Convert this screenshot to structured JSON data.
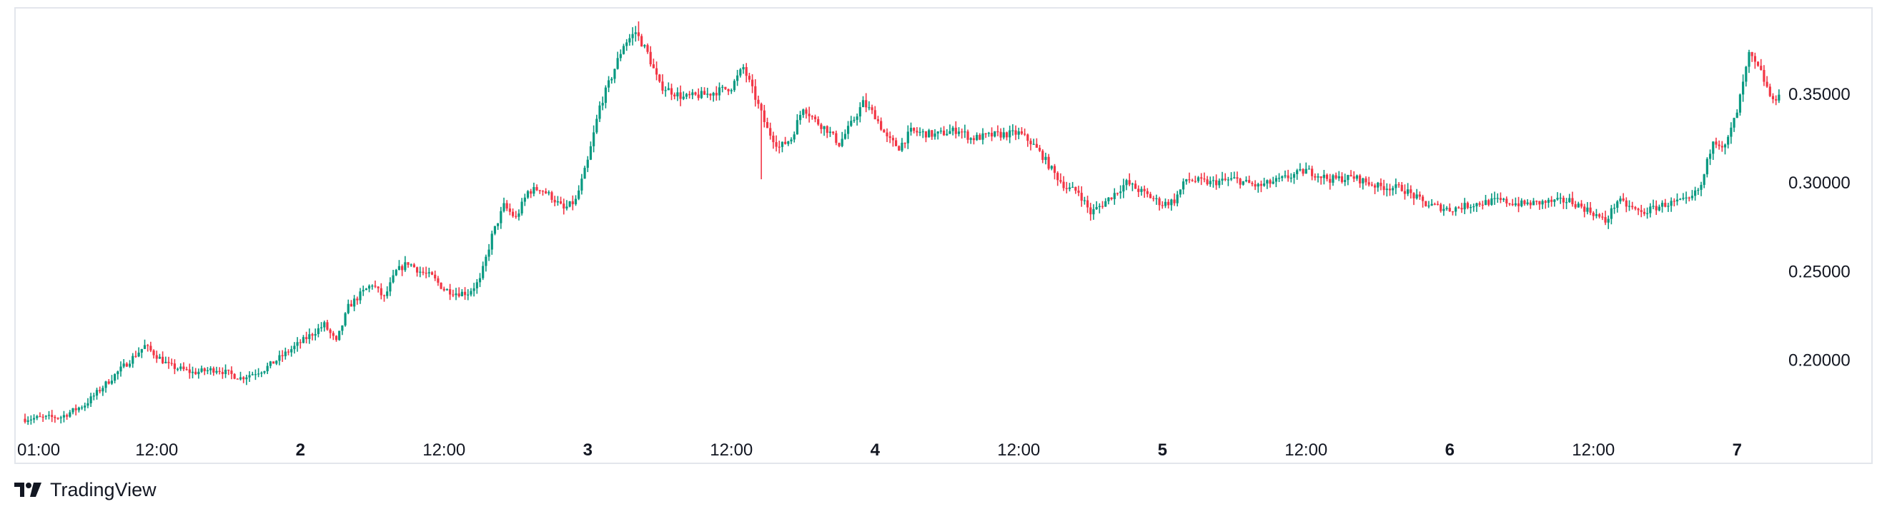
{
  "brand": {
    "name": "TradingView",
    "icon": "tradingview-logo-icon"
  },
  "colors": {
    "up": "#089981",
    "down": "#f23645",
    "grid": "#e3e6ec",
    "text": "#131722"
  },
  "chart_data": {
    "type": "candlestick",
    "yaxis_position": "right",
    "ylim": [
      0.16,
      0.395
    ],
    "price_ticks": [
      "0.35000",
      "0.30000",
      "0.25000",
      "0.20000"
    ],
    "price_tick_values": [
      0.35,
      0.3,
      0.25,
      0.2
    ],
    "time_ticks": [
      {
        "label": "01:00",
        "bold": false,
        "hour": 0
      },
      {
        "label": "12:00",
        "bold": false,
        "hour": 11
      },
      {
        "label": "2",
        "bold": true,
        "hour": 23
      },
      {
        "label": "12:00",
        "bold": false,
        "hour": 35
      },
      {
        "label": "3",
        "bold": true,
        "hour": 47
      },
      {
        "label": "12:00",
        "bold": false,
        "hour": 59
      },
      {
        "label": "4",
        "bold": true,
        "hour": 71
      },
      {
        "label": "12:00",
        "bold": false,
        "hour": 83
      },
      {
        "label": "5",
        "bold": true,
        "hour": 95
      },
      {
        "label": "12:00",
        "bold": false,
        "hour": 107
      },
      {
        "label": "6",
        "bold": true,
        "hour": 119
      },
      {
        "label": "12:00",
        "bold": false,
        "hour": 131
      },
      {
        "label": "7",
        "bold": true,
        "hour": 143
      }
    ],
    "close_path": [
      [
        0,
        0.167
      ],
      [
        3,
        0.168
      ],
      [
        5,
        0.175
      ],
      [
        8,
        0.195
      ],
      [
        10,
        0.208
      ],
      [
        12,
        0.197
      ],
      [
        14,
        0.193
      ],
      [
        16,
        0.195
      ],
      [
        18,
        0.19
      ],
      [
        20,
        0.195
      ],
      [
        22,
        0.205
      ],
      [
        24,
        0.215
      ],
      [
        25,
        0.22
      ],
      [
        26,
        0.21
      ],
      [
        27,
        0.23
      ],
      [
        28,
        0.237
      ],
      [
        29,
        0.243
      ],
      [
        30,
        0.235
      ],
      [
        31,
        0.25
      ],
      [
        32,
        0.255
      ],
      [
        33,
        0.25
      ],
      [
        34,
        0.247
      ],
      [
        35,
        0.24
      ],
      [
        36,
        0.238
      ],
      [
        37,
        0.238
      ],
      [
        38,
        0.245
      ],
      [
        39,
        0.27
      ],
      [
        40,
        0.287
      ],
      [
        41,
        0.28
      ],
      [
        42,
        0.295
      ],
      [
        43,
        0.297
      ],
      [
        44,
        0.292
      ],
      [
        45,
        0.285
      ],
      [
        46,
        0.29
      ],
      [
        47,
        0.312
      ],
      [
        48,
        0.343
      ],
      [
        49,
        0.36
      ],
      [
        50,
        0.378
      ],
      [
        51,
        0.385
      ],
      [
        52,
        0.373
      ],
      [
        53,
        0.355
      ],
      [
        55,
        0.348
      ],
      [
        57,
        0.35
      ],
      [
        59,
        0.354
      ],
      [
        60,
        0.365
      ],
      [
        61,
        0.348
      ],
      [
        62,
        0.33
      ],
      [
        63,
        0.32
      ],
      [
        64,
        0.325
      ],
      [
        65,
        0.343
      ],
      [
        66,
        0.335
      ],
      [
        67,
        0.33
      ],
      [
        68,
        0.322
      ],
      [
        69,
        0.333
      ],
      [
        70,
        0.345
      ],
      [
        71,
        0.338
      ],
      [
        72,
        0.325
      ],
      [
        73,
        0.32
      ],
      [
        74,
        0.329
      ],
      [
        76,
        0.327
      ],
      [
        78,
        0.33
      ],
      [
        79,
        0.325
      ],
      [
        81,
        0.327
      ],
      [
        83,
        0.328
      ],
      [
        84,
        0.323
      ],
      [
        85,
        0.315
      ],
      [
        86,
        0.305
      ],
      [
        87,
        0.297
      ],
      [
        88,
        0.295
      ],
      [
        89,
        0.283
      ],
      [
        90,
        0.288
      ],
      [
        92,
        0.3
      ],
      [
        94,
        0.292
      ],
      [
        95,
        0.288
      ],
      [
        96,
        0.29
      ],
      [
        97,
        0.302
      ],
      [
        99,
        0.3
      ],
      [
        101,
        0.302
      ],
      [
        103,
        0.298
      ],
      [
        105,
        0.302
      ],
      [
        107,
        0.307
      ],
      [
        109,
        0.302
      ],
      [
        111,
        0.303
      ],
      [
        113,
        0.298
      ],
      [
        115,
        0.297
      ],
      [
        117,
        0.288
      ],
      [
        119,
        0.285
      ],
      [
        121,
        0.288
      ],
      [
        123,
        0.29
      ],
      [
        125,
        0.288
      ],
      [
        127,
        0.289
      ],
      [
        129,
        0.29
      ],
      [
        131,
        0.283
      ],
      [
        132,
        0.278
      ],
      [
        133,
        0.29
      ],
      [
        135,
        0.283
      ],
      [
        137,
        0.288
      ],
      [
        139,
        0.29
      ],
      [
        140,
        0.298
      ],
      [
        141,
        0.325
      ],
      [
        142,
        0.32
      ],
      [
        143,
        0.34
      ],
      [
        144,
        0.372
      ],
      [
        145,
        0.362
      ],
      [
        146,
        0.345
      ],
      [
        146.7,
        0.354
      ]
    ]
  }
}
